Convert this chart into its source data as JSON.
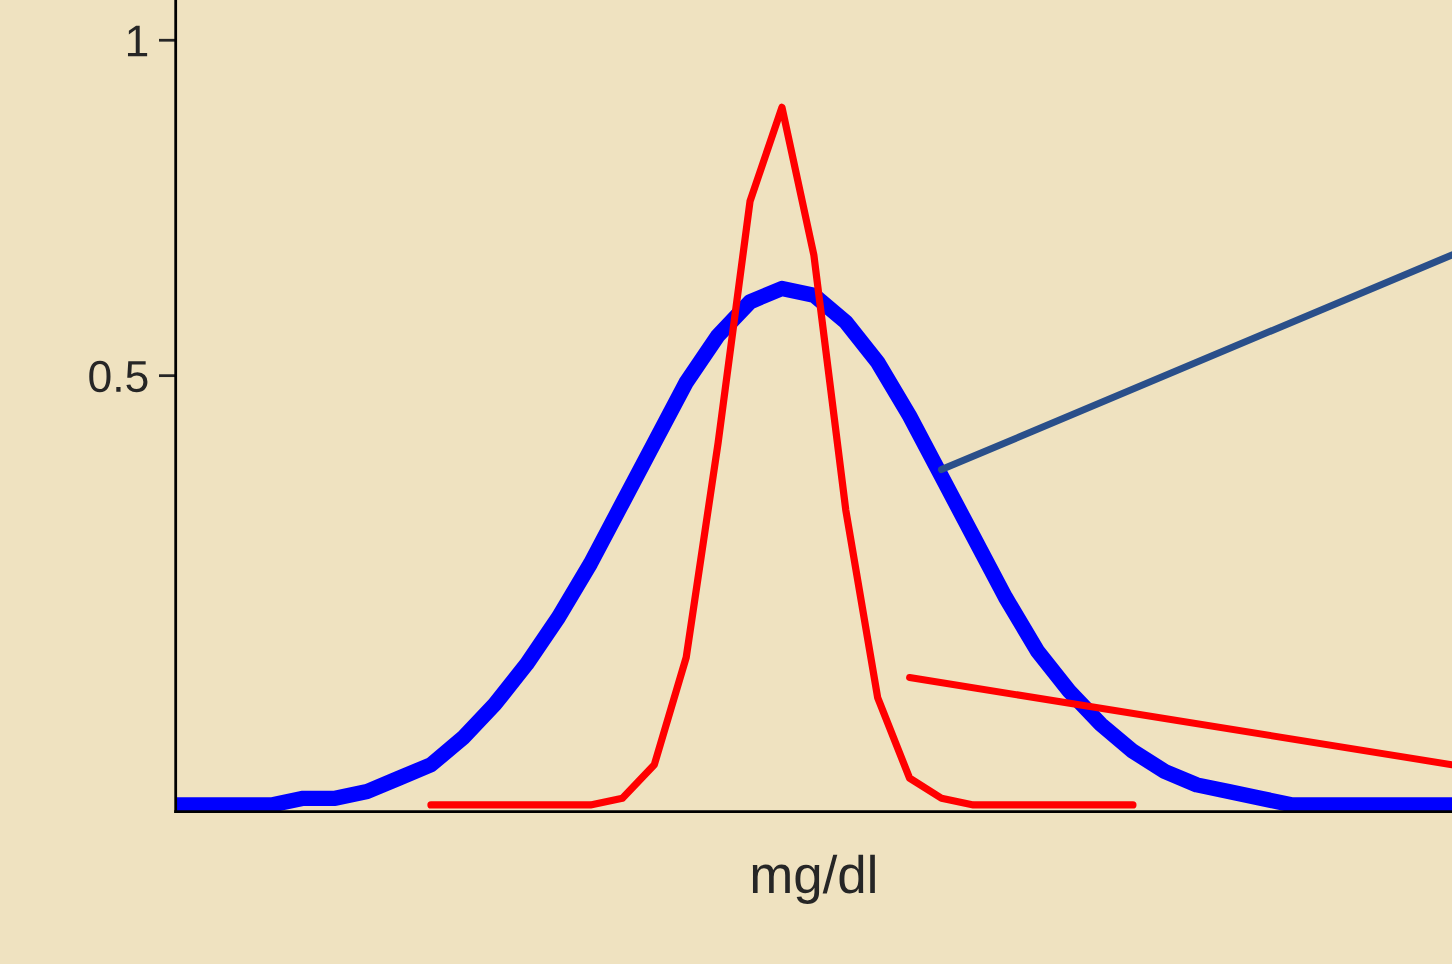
{
  "chart_data": {
    "type": "line",
    "xlabel": "mg/dl",
    "categories": [
      null,
      null,
      null,
      null,
      null,
      null,
      null,
      null,
      null,
      null,
      null,
      null,
      null,
      null,
      null,
      null,
      null,
      null,
      null,
      null,
      null,
      null,
      null,
      null,
      null,
      null,
      null,
      null,
      null,
      null,
      null,
      null,
      null,
      null,
      null,
      null,
      null,
      null,
      null,
      null,
      null
    ],
    "series": [
      {
        "color": "#0000ff",
        "values": [
          -0.14,
          -0.14,
          -0.14,
          -0.14,
          -0.13,
          -0.13,
          -0.12,
          -0.1,
          -0.08,
          -0.04,
          0.01,
          0.07,
          0.14,
          0.22,
          0.31,
          0.4,
          0.49,
          0.56,
          0.61,
          0.63,
          0.62,
          0.58,
          0.52,
          0.44,
          0.35,
          0.26,
          0.17,
          0.09,
          0.03,
          -0.02,
          -0.06,
          -0.09,
          -0.11,
          -0.12,
          -0.13,
          -0.14,
          -0.14,
          -0.14,
          -0.14,
          -0.14,
          -0.14
        ]
      },
      {
        "color": "#ff0000",
        "values": [
          null,
          null,
          null,
          null,
          null,
          null,
          null,
          null,
          -0.14,
          -0.14,
          -0.14,
          -0.14,
          -0.14,
          -0.14,
          -0.13,
          -0.08,
          0.08,
          0.4,
          0.76,
          0.9,
          0.68,
          0.3,
          0.02,
          -0.1,
          -0.13,
          -0.14,
          -0.14,
          -0.14,
          -0.14,
          -0.14,
          -0.14,
          null,
          null,
          null,
          null,
          null,
          null,
          null,
          null,
          null,
          null
        ]
      },
      {
        "type": "line",
        "color": "#2a4f8a",
        "values": [
          null,
          null,
          null,
          null,
          null,
          null,
          null,
          null,
          null,
          null,
          null,
          null,
          null,
          null,
          null,
          null,
          null,
          null,
          null,
          null,
          null,
          null,
          null,
          null,
          0.36,
          null,
          null,
          null,
          null,
          null,
          null,
          null,
          null,
          null,
          null,
          null,
          null,
          null,
          null,
          null,
          0.68
        ]
      },
      {
        "type": "line",
        "color": "#ff0000",
        "values": [
          null,
          null,
          null,
          null,
          null,
          null,
          null,
          null,
          null,
          null,
          null,
          null,
          null,
          null,
          null,
          null,
          null,
          null,
          null,
          null,
          null,
          null,
          null,
          0.05,
          null,
          null,
          null,
          null,
          null,
          null,
          null,
          null,
          null,
          null,
          null,
          null,
          null,
          null,
          null,
          null,
          -0.08
        ]
      }
    ],
    "ylim": [
      -0.15,
      1.06
    ],
    "yticks": [
      0.5,
      1
    ],
    "grid": false,
    "legend": false
  }
}
